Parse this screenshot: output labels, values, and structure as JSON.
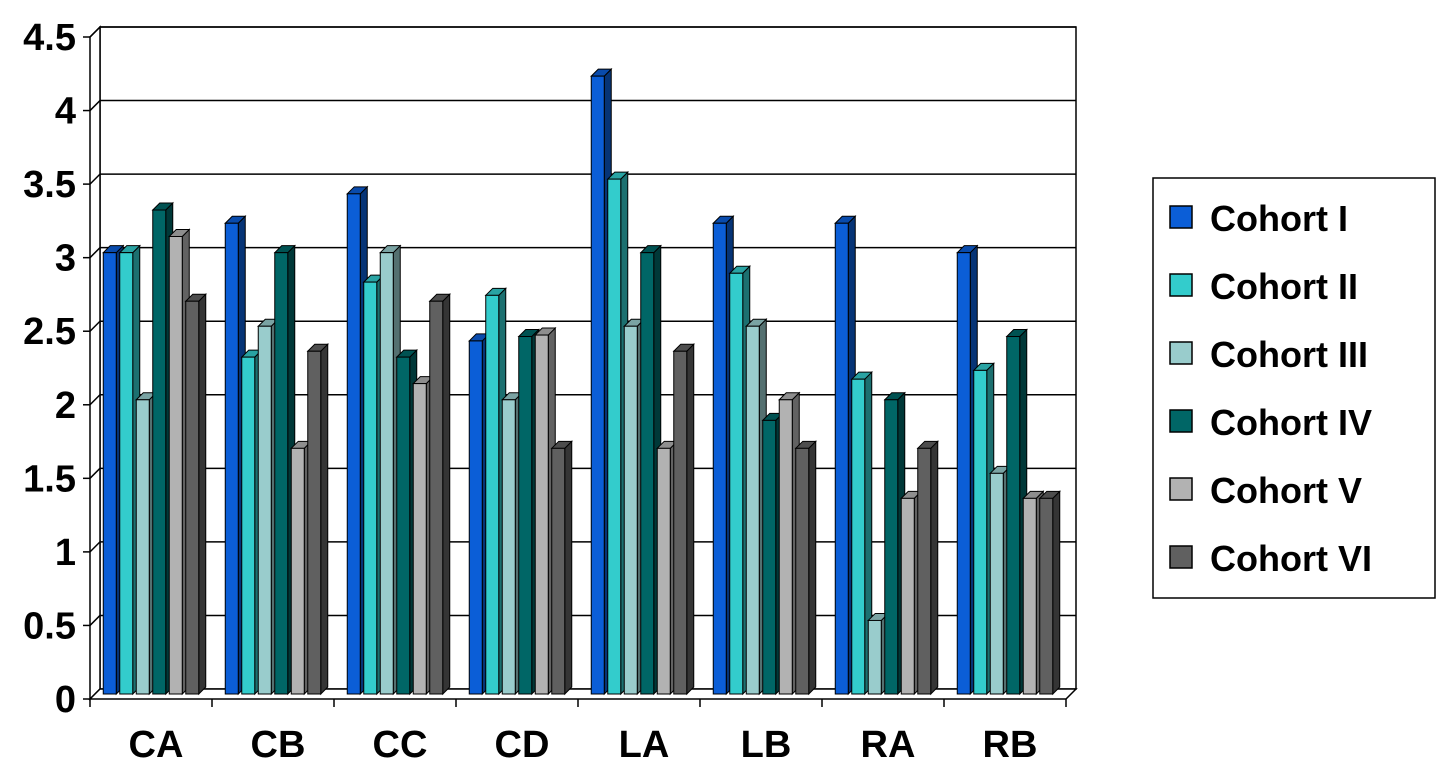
{
  "chart_data": {
    "type": "bar",
    "style": "3d-clustered-column",
    "categories": [
      "CA",
      "CB",
      "CC",
      "CD",
      "LA",
      "LB",
      "RA",
      "RB"
    ],
    "series": [
      {
        "name": "Cohort I",
        "color": "#0b5ed7",
        "values": [
          3.0,
          3.2,
          3.4,
          2.4,
          4.2,
          3.2,
          3.2,
          3.0
        ]
      },
      {
        "name": "Cohort II",
        "color": "#33cccc",
        "values": [
          3.0,
          2.29,
          2.8,
          2.71,
          3.5,
          2.86,
          2.14,
          2.2
        ]
      },
      {
        "name": "Cohort III",
        "color": "#99cccc",
        "values": [
          2.0,
          2.5,
          3.0,
          2.0,
          2.5,
          2.5,
          0.5,
          1.5
        ]
      },
      {
        "name": "Cohort IV",
        "color": "#006666",
        "values": [
          3.29,
          3.0,
          2.29,
          2.43,
          3.0,
          1.86,
          2.0,
          2.43
        ]
      },
      {
        "name": "Cohort V",
        "color": "#b2b2b2",
        "values": [
          3.11,
          1.67,
          2.11,
          2.44,
          1.67,
          2.0,
          1.33,
          1.33
        ]
      },
      {
        "name": "Cohort VI",
        "color": "#606060",
        "values": [
          2.67,
          2.33,
          2.67,
          1.67,
          2.33,
          1.67,
          1.67,
          1.33
        ]
      }
    ],
    "ylim": [
      0,
      4.5
    ],
    "yticks": [
      "0",
      "0.5",
      "1",
      "1.5",
      "2",
      "2.5",
      "3",
      "3.5",
      "4",
      "4.5"
    ],
    "title": "",
    "xlabel": "",
    "ylabel": "",
    "grid": "horizontal",
    "legend": "right"
  }
}
